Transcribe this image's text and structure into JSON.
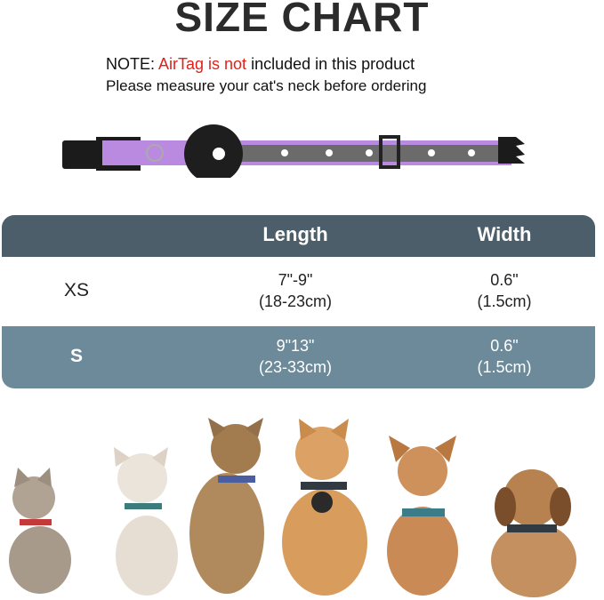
{
  "title": "SIZE CHART",
  "note": {
    "prefix": "NOTE: ",
    "highlight": "AirTag is not",
    "suffix": " included in this product",
    "highlight_color": "#e0211b",
    "line2": "Please measure your cat's neck before ordering"
  },
  "table": {
    "headers": [
      "",
      "Length",
      "Width"
    ],
    "rows": [
      {
        "size": "XS",
        "length_in": "7\"-9\"",
        "length_cm": "(18-23cm)",
        "width_in": "0.6\"",
        "width_cm": "(1.5cm)"
      },
      {
        "size": "S",
        "length_in": "9\"13\"",
        "length_cm": "(23-33cm)",
        "width_in": "0.6\"",
        "width_cm": "(1.5cm)"
      }
    ],
    "header_color": "#4b5e69",
    "alt_row_color": "#6c8a9a"
  },
  "collar_color": "#b98ae0"
}
